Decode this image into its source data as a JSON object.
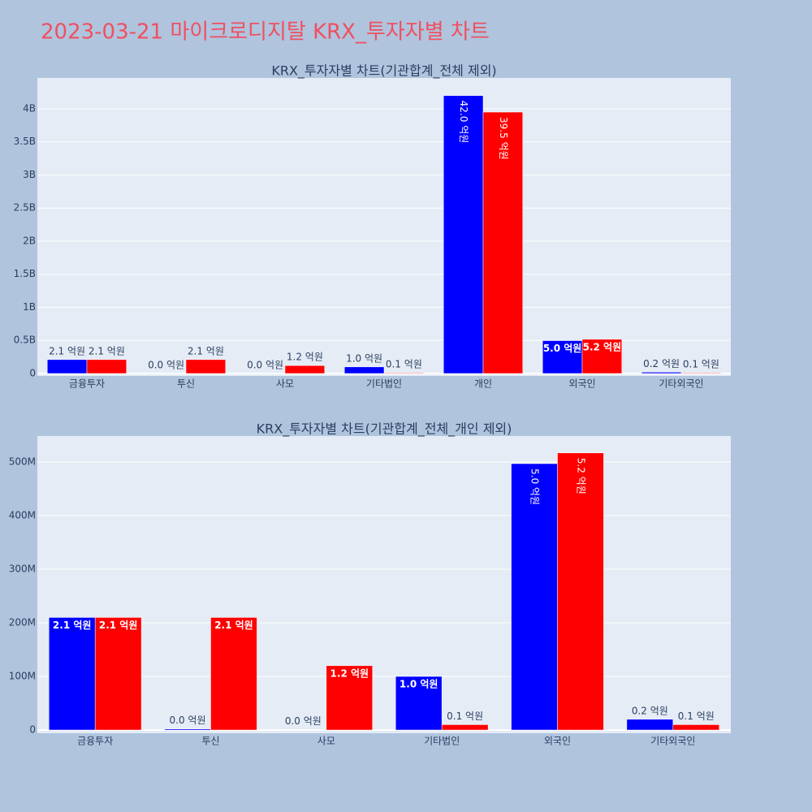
{
  "title": "2023-03-21 마이크로디지탈 KRX_투자자별 차트",
  "chart_data": [
    {
      "type": "bar",
      "title": "KRX_투자자별 차트(기관합계_전체 제외)",
      "categories": [
        "금융투자",
        "투신",
        "사모",
        "기타법인",
        "개인",
        "외국인",
        "기타외국인"
      ],
      "series": [
        {
          "color": "#0000ff",
          "values": [
            210000000,
            2000000,
            500000,
            100000000,
            4200000000,
            497000000,
            20000000
          ],
          "value_labels": [
            "2.1 억원",
            "0.0 억원",
            "0.0 억원",
            "1.0 억원",
            "42.0 억원",
            "5.0 억원",
            "0.2 억원"
          ]
        },
        {
          "color": "#ff0000",
          "values": [
            210000000,
            210000000,
            120000000,
            10000000,
            3950000000,
            517000000,
            10000000
          ],
          "value_labels": [
            "2.1 억원",
            "2.1 억원",
            "1.2 억원",
            "0.1 억원",
            "39.5 억원",
            "5.2 억원",
            "0.1 억원"
          ]
        }
      ],
      "ylim": [
        -37000000,
        4466000000
      ],
      "yticks": [
        0,
        {
          "value": 500000000,
          "label": "0.5B"
        },
        {
          "value": 1000000000,
          "label": "1B"
        },
        {
          "value": 1500000000,
          "label": "1.5B"
        },
        {
          "value": 2000000000,
          "label": "2B"
        },
        {
          "value": 2500000000,
          "label": "2.5B"
        },
        {
          "value": 3000000000,
          "label": "3B"
        },
        {
          "value": 3500000000,
          "label": "3.5B"
        },
        {
          "value": 4000000000,
          "label": "4B"
        }
      ],
      "grid": true
    },
    {
      "type": "bar",
      "title": "KRX_투자자별 차트(기관합계_전체_개인 제외)",
      "categories": [
        "금융투자",
        "투신",
        "사모",
        "기타법인",
        "외국인",
        "기타외국인"
      ],
      "series": [
        {
          "color": "#0000ff",
          "values": [
            210000000,
            2000000,
            500000,
            100000000,
            497000000,
            20000000
          ],
          "value_labels": [
            "2.1 억원",
            "0.0 억원",
            "0.0 억원",
            "1.0 억원",
            "5.0 억원",
            "0.2 억원"
          ]
        },
        {
          "color": "#ff0000",
          "values": [
            210000000,
            210000000,
            120000000,
            10000000,
            517000000,
            10000000
          ],
          "value_labels": [
            "2.1 억원",
            "2.1 억원",
            "1.2 억원",
            "0.1 억원",
            "5.2 억원",
            "0.1 억원"
          ]
        }
      ],
      "ylim": [
        -6000000,
        548500000
      ],
      "yticks": [
        0,
        {
          "value": 100000000,
          "label": "100M"
        },
        {
          "value": 200000000,
          "label": "200M"
        },
        {
          "value": 300000000,
          "label": "300M"
        },
        {
          "value": 400000000,
          "label": "400M"
        },
        {
          "value": 500000000,
          "label": "500M"
        }
      ],
      "grid": true
    }
  ]
}
